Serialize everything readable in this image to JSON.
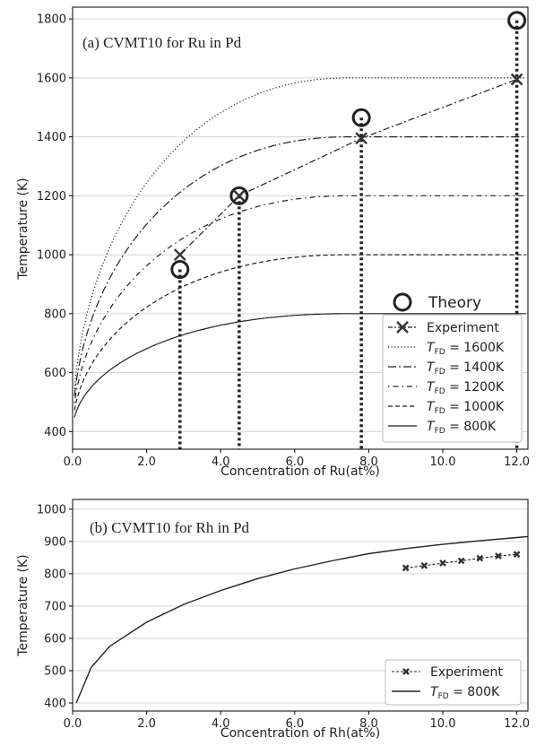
{
  "chart_data": [
    {
      "type": "line",
      "title": "(a) CVMT10 for Ru in Pd",
      "xlabel": "Concentration of Ru(at%)",
      "ylabel": "Temperature (K)",
      "xlim": [
        0,
        12.3
      ],
      "ylim": [
        340,
        1840
      ],
      "xticks": [
        0,
        2,
        4,
        6,
        8,
        10,
        12
      ],
      "xtick_labels": [
        "0.0",
        "2.0",
        "4.0",
        "6.0",
        "8.0",
        "10.0",
        "12.0"
      ],
      "yticks": [
        400,
        600,
        800,
        1000,
        1200,
        1400,
        1600,
        1800
      ],
      "ytick_labels": [
        "400",
        "600",
        "800",
        "1000",
        "1200",
        "1400",
        "1600",
        "1800"
      ],
      "grid": "horizontal",
      "legend_position": "bottom-right",
      "theory_label": "Theory",
      "theory": {
        "x": [
          2.9,
          4.5,
          7.8,
          12.0
        ],
        "y": [
          950,
          1200,
          1465,
          1795
        ]
      },
      "experiment": {
        "name": "Experiment",
        "x": [
          2.9,
          4.5,
          7.8,
          12.0
        ],
        "y": [
          1000,
          1200,
          1395,
          1595
        ]
      },
      "curves": [
        {
          "name": "T_FD = 1600K",
          "label_main": "T",
          "label_sub": "FD",
          "label_rest": " = 1600K",
          "tfd": 1600,
          "style": "dotted"
        },
        {
          "name": "T_FD = 1400K",
          "label_main": "T",
          "label_sub": "FD",
          "label_rest": " = 1400K",
          "tfd": 1400,
          "style": "dashdot"
        },
        {
          "name": "T_FD = 1200K",
          "label_main": "T",
          "label_sub": "FD",
          "label_rest": " = 1200K",
          "tfd": 1200,
          "style": "sparse-dashdot"
        },
        {
          "name": "T_FD = 1000K",
          "label_main": "T",
          "label_sub": "FD",
          "label_rest": " = 1000K",
          "tfd": 1000,
          "style": "dashed"
        },
        {
          "name": "T_FD = 800K",
          "label_main": "T",
          "label_sub": "FD",
          "label_rest": " = 800K",
          "tfd": 800,
          "style": "solid"
        }
      ]
    },
    {
      "type": "line",
      "title": "(b) CVMT10 for Rh in Pd",
      "xlabel": "Concentration of Rh(at%)",
      "ylabel": "Temperature (K)",
      "xlim": [
        0,
        12.3
      ],
      "ylim": [
        375,
        1030
      ],
      "xticks": [
        0,
        2,
        4,
        6,
        8,
        10,
        12
      ],
      "xtick_labels": [
        "0.0",
        "2.0",
        "4.0",
        "6.0",
        "8.0",
        "10.0",
        "12.0"
      ],
      "yticks": [
        400,
        500,
        600,
        700,
        800,
        900,
        1000
      ],
      "ytick_labels": [
        "400",
        "500",
        "600",
        "700",
        "800",
        "900",
        "1000"
      ],
      "grid": "horizontal",
      "legend_position": "bottom-right",
      "experiment": {
        "name": "Experiment",
        "x": [
          9.0,
          9.5,
          10.0,
          10.5,
          11.0,
          11.5,
          12.0
        ],
        "y": [
          818,
          825,
          833,
          840,
          848,
          855,
          860
        ]
      },
      "curves": [
        {
          "name": "T_FD = 800K",
          "label_main": "T",
          "label_sub": "FD",
          "label_rest": " = 800K",
          "tfd": 800,
          "style": "solid",
          "x": [
            0.1,
            0.5,
            1,
            2,
            3,
            4,
            5,
            6,
            7,
            8,
            9,
            10,
            11,
            12,
            12.3
          ],
          "y": [
            400,
            510,
            575,
            650,
            705,
            748,
            785,
            815,
            840,
            862,
            878,
            891,
            902,
            912,
            915
          ]
        }
      ]
    }
  ]
}
